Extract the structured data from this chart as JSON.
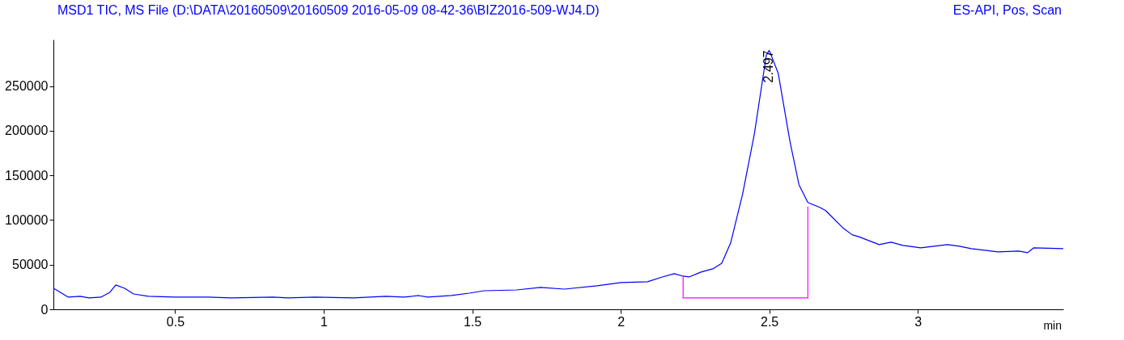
{
  "chart_data": {
    "type": "line",
    "title": "MSD1 TIC, MS File (D:\\DATA\\20160509\\20160509 2016-05-09 08-42-36\\BIZ2016-509-WJ4.D)",
    "subtitle": "ES-API, Pos, Scan",
    "xlabel": "min",
    "xlim": [
      0.09,
      3.49
    ],
    "xticks": [
      0.5,
      1,
      1.5,
      2,
      2.5,
      3
    ],
    "ylim": [
      0,
      302000
    ],
    "yticks": [
      0,
      50000,
      100000,
      150000,
      200000,
      250000
    ],
    "grid": false,
    "line_style": "solid",
    "series": [
      {
        "color": "#0000ff",
        "x": [
          0.09,
          0.1,
          0.14,
          0.18,
          0.21,
          0.25,
          0.28,
          0.3,
          0.33,
          0.36,
          0.41,
          0.5,
          0.61,
          0.69,
          0.83,
          0.88,
          0.97,
          1.1,
          1.21,
          1.27,
          1.32,
          1.35,
          1.43,
          1.49,
          1.54,
          1.65,
          1.73,
          1.81,
          1.92,
          2.0,
          2.09,
          2.14,
          2.18,
          2.21,
          2.23,
          2.27,
          2.31,
          2.34,
          2.37,
          2.41,
          2.45,
          2.49,
          2.5,
          2.53,
          2.57,
          2.6,
          2.63,
          2.67,
          2.69,
          2.75,
          2.78,
          2.8,
          2.87,
          2.91,
          2.95,
          3.01,
          3.1,
          3.14,
          3.18,
          3.27,
          3.34,
          3.37,
          3.39,
          3.49
        ],
        "values": [
          23500,
          21700,
          13600,
          14500,
          12700,
          13600,
          19000,
          27200,
          23500,
          17200,
          14500,
          13600,
          13600,
          12700,
          13600,
          12700,
          13600,
          12700,
          14500,
          13600,
          15400,
          13600,
          15400,
          18100,
          20800,
          21700,
          24500,
          22600,
          26300,
          29900,
          30800,
          36200,
          39900,
          37100,
          36200,
          41700,
          45300,
          51600,
          74300,
          128600,
          196600,
          284400,
          289900,
          264500,
          187500,
          139500,
          119600,
          114100,
          110500,
          90600,
          83300,
          81500,
          72500,
          75200,
          71600,
          68800,
          72500,
          70700,
          67900,
          64300,
          65200,
          63400,
          68800,
          67900
        ]
      },
      {
        "color": "#ff00ff",
        "x": [
          2.21,
          2.21,
          2.63,
          2.63
        ],
        "values": [
          37000,
          12700,
          12700,
          115000
        ]
      }
    ],
    "annotations": [
      {
        "text": "2.497",
        "x": 2.497,
        "y": 289900
      }
    ]
  }
}
